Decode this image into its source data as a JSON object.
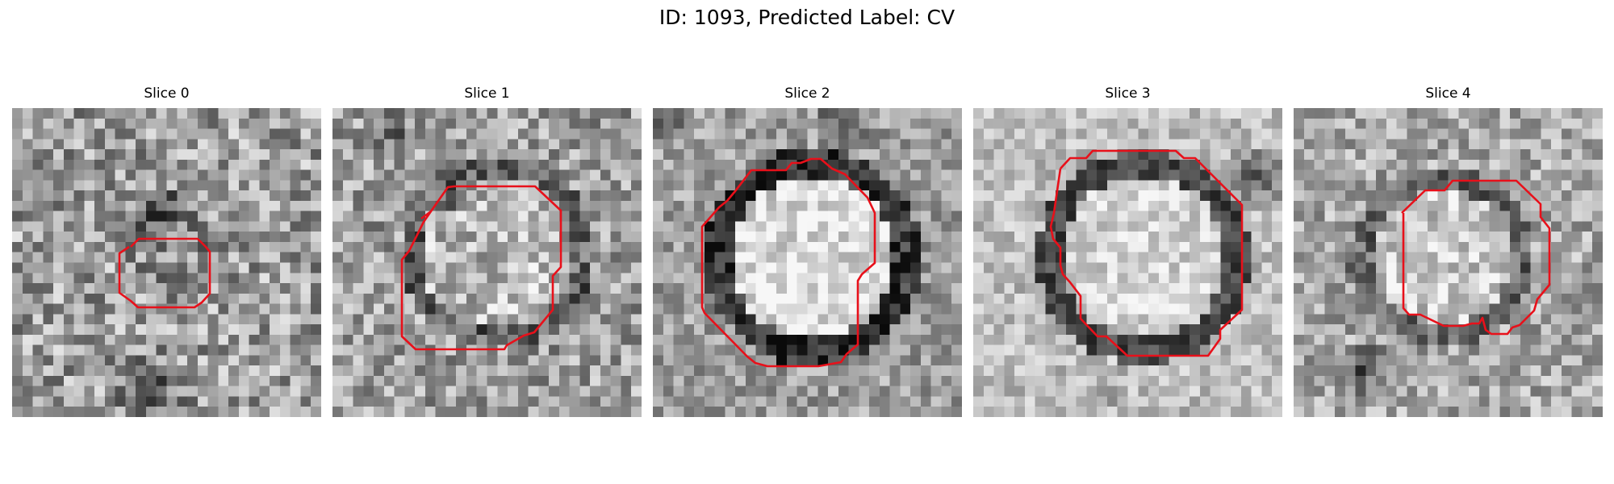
{
  "figure": {
    "title": "ID: 1093, Predicted Label: CV",
    "contour_color": "#e8101a",
    "image_grid_size": 30,
    "slices": [
      {
        "label": "Slice 0"
      },
      {
        "label": "Slice 1"
      },
      {
        "label": "Slice 2"
      },
      {
        "label": "Slice 3"
      },
      {
        "label": "Slice 4"
      }
    ]
  }
}
